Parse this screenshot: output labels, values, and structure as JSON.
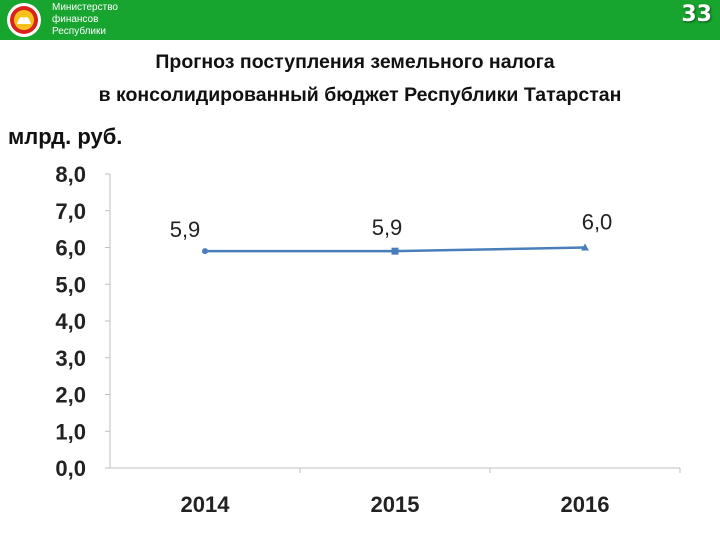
{
  "header": {
    "ministry_lines": [
      "Министерство",
      "финансов",
      "Республики"
    ],
    "page_number": "33",
    "brand_color": "#17a42f"
  },
  "title": {
    "line1": "Прогноз поступления земельного налога",
    "line2": "в консолидированный бюджет Республики Татарстан"
  },
  "chart_data": {
    "type": "line",
    "title": "Прогноз поступления земельного налога в консолидированный бюджет Республики Татарстан",
    "ylabel": "млрд. руб.",
    "xlabel": "",
    "categories": [
      "2014",
      "2015",
      "2016"
    ],
    "series": [
      {
        "values": [
          5.9,
          5.9,
          6.0
        ],
        "labels": [
          "5,9",
          "5,9",
          "6,0"
        ],
        "color": "#4a7ebb"
      }
    ],
    "ylim": [
      0,
      8
    ],
    "yticks": [
      "0,0",
      "1,0",
      "2,0",
      "3,0",
      "4,0",
      "5,0",
      "6,0",
      "7,0",
      "8,0"
    ],
    "grid": false,
    "legend": "none"
  }
}
